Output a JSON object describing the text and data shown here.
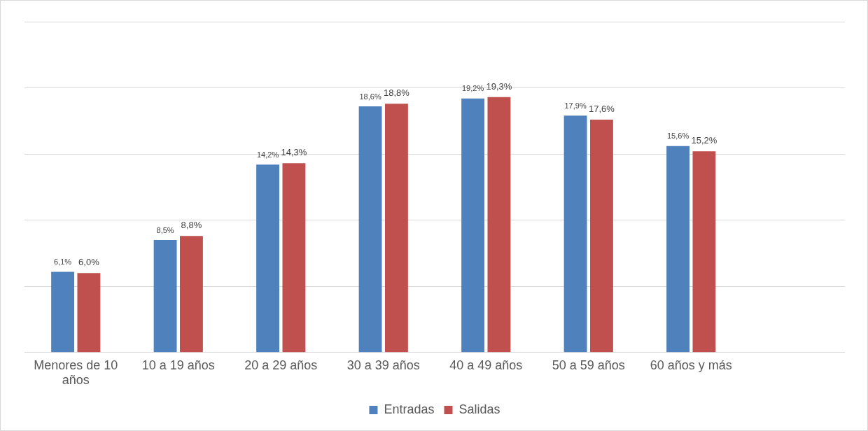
{
  "chart_data": {
    "type": "bar",
    "categories": [
      "Menores de 10 años",
      "10 a 19 años",
      "20 a 29 años",
      "30 a 39 años",
      "40 a 49 años",
      "50 a 59 años",
      "60 años y más",
      null
    ],
    "series": [
      {
        "name": "Entradas",
        "color": "#4f81bd",
        "values": [
          6.1,
          8.5,
          14.2,
          18.6,
          19.2,
          17.9,
          15.6,
          null
        ],
        "value_labels": [
          "6,1%",
          "8,5%",
          "14,2%",
          "18,6%",
          "19,2%",
          "17,9%",
          "15,6%",
          null
        ]
      },
      {
        "name": "Salidas",
        "color": "#c0504d",
        "values": [
          6.0,
          8.8,
          14.3,
          18.8,
          19.3,
          17.6,
          15.2,
          null
        ],
        "value_labels": [
          "6,0%",
          "8,8%",
          "14,3%",
          "18,8%",
          "19,3%",
          "17,6%",
          "15,2%",
          null
        ]
      }
    ],
    "ylim": [
      0,
      25
    ],
    "yticks": [
      {
        "value": 0,
        "label": null
      },
      {
        "value": 5,
        "label": null
      },
      {
        "value": 10,
        "label": null
      },
      {
        "value": 15,
        "label": null
      },
      {
        "value": 20,
        "label": null
      },
      {
        "value": 25,
        "label": null
      }
    ],
    "tick_labels": "x",
    "grid": "y",
    "legend": "bottom"
  }
}
